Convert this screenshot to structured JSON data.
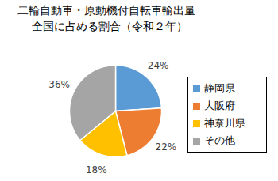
{
  "chart_data": {
    "type": "pie",
    "title": "二輪自動車・原動機付自転車輸出量",
    "subtitle": "全国に占める割合（令和２年）",
    "categories": [
      "静岡県",
      "大阪府",
      "神奈川県",
      "その他"
    ],
    "values": [
      24,
      22,
      18,
      36
    ],
    "value_labels": [
      "24%",
      "22%",
      "18%",
      "36%"
    ],
    "colors": [
      "#5B9BD5",
      "#ED7D31",
      "#FFC000",
      "#A5A5A5"
    ],
    "data_labels": true,
    "legend": "right"
  }
}
